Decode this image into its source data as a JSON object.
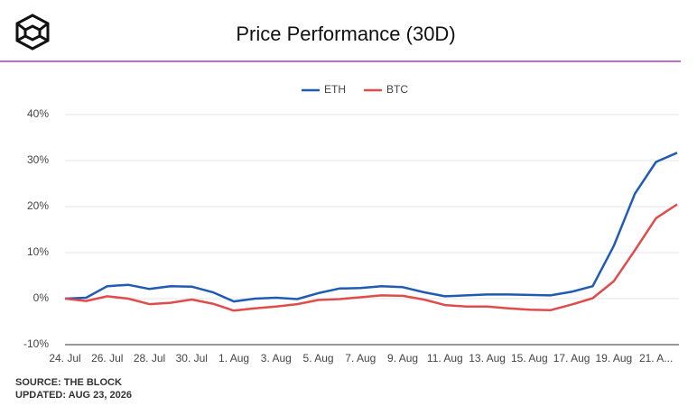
{
  "chart_data": {
    "type": "line",
    "title": "Price Performance (30D)",
    "source": "SOURCE: THE BLOCK",
    "updated": "UPDATED: AUG 23, 2026",
    "categories": [
      "24. Jul",
      null,
      "26. Jul",
      null,
      "28. Jul",
      null,
      "30. Jul",
      null,
      "1. Aug",
      null,
      "3. Aug",
      null,
      "5. Aug",
      null,
      "7. Aug",
      null,
      "9. Aug",
      null,
      "11. Aug",
      null,
      "13. Aug",
      null,
      "15. Aug",
      null,
      "17. Aug",
      null,
      "19. Aug",
      null,
      "21. A...",
      null
    ],
    "series": [
      {
        "name": "ETH",
        "color": "#1f5bb5",
        "values": [
          0,
          0.2,
          2.7,
          3.0,
          2.1,
          2.7,
          2.6,
          1.4,
          -0.6,
          0,
          0.2,
          -0.1,
          1.2,
          2.2,
          2.3,
          2.7,
          2.5,
          1.4,
          0.5,
          0.7,
          0.9,
          0.9,
          0.8,
          0.7,
          1.5,
          2.7,
          11.5,
          22.8,
          29.7,
          31.7
        ]
      },
      {
        "name": "BTC",
        "color": "#e04c4c",
        "values": [
          0,
          -0.5,
          0.5,
          0,
          -1.2,
          -0.9,
          -0.2,
          -1.1,
          -2.6,
          -2.1,
          -1.7,
          -1.2,
          -0.3,
          -0.1,
          0.3,
          0.7,
          0.6,
          -0.2,
          -1.4,
          -1.7,
          -1.7,
          -2.1,
          -2.4,
          -2.5,
          -1.3,
          0.1,
          3.8,
          10.5,
          17.5,
          20.5
        ]
      }
    ],
    "ylim": [
      -10,
      40
    ],
    "yticks": [
      {
        "value": -10,
        "label": "-10%"
      },
      {
        "value": 0,
        "label": "0%"
      },
      {
        "value": 10,
        "label": "10%"
      },
      {
        "value": 20,
        "label": "20%"
      },
      {
        "value": 30,
        "label": "30%"
      },
      {
        "value": 40,
        "label": "40%"
      }
    ],
    "grid": true,
    "legend": "top"
  }
}
